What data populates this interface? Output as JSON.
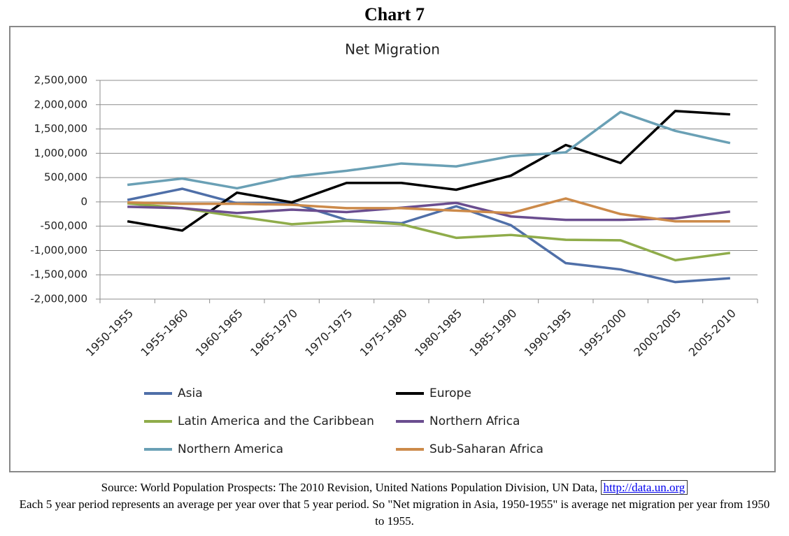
{
  "heading": "Chart 7",
  "chart_data": {
    "type": "line",
    "title": "Net Migration",
    "categories": [
      "1950-1955",
      "1955-1960",
      "1960-1965",
      "1965-1970",
      "1970-1975",
      "1975-1980",
      "1980-1985",
      "1985-1990",
      "1990-1995",
      "1995-2000",
      "2000-2005",
      "2005-2010"
    ],
    "series": [
      {
        "name": "Asia",
        "color": "#4f6fa8",
        "values": [
          40000,
          270000,
          -30000,
          -20000,
          -370000,
          -440000,
          -90000,
          -480000,
          -1260000,
          -1390000,
          -1650000,
          -1570000
        ]
      },
      {
        "name": "Europe",
        "color": "#000000",
        "values": [
          -400000,
          -590000,
          190000,
          -10000,
          390000,
          390000,
          250000,
          540000,
          1170000,
          800000,
          1870000,
          1800000
        ]
      },
      {
        "name": "Latin America and the Caribbean",
        "color": "#8fac4a",
        "values": [
          -30000,
          -130000,
          -300000,
          -460000,
          -390000,
          -460000,
          -740000,
          -680000,
          -780000,
          -790000,
          -1200000,
          -1050000
        ]
      },
      {
        "name": "Northern Africa",
        "color": "#6a4d8f",
        "values": [
          -100000,
          -130000,
          -230000,
          -160000,
          -210000,
          -120000,
          -20000,
          -300000,
          -370000,
          -370000,
          -340000,
          -200000
        ]
      },
      {
        "name": "Northern America",
        "color": "#6aa0b5",
        "values": [
          350000,
          480000,
          280000,
          520000,
          640000,
          790000,
          730000,
          940000,
          1020000,
          1850000,
          1460000,
          1210000
        ]
      },
      {
        "name": "Sub-Saharan Africa",
        "color": "#cc8a4a",
        "values": [
          -10000,
          -40000,
          -40000,
          -60000,
          -130000,
          -130000,
          -180000,
          -230000,
          70000,
          -250000,
          -400000,
          -400000
        ]
      }
    ],
    "ylim": [
      -2000000,
      2500000
    ],
    "yticks": [
      {
        "value": -2000000,
        "label": "-2,000,000"
      },
      {
        "value": -1500000,
        "label": "-1,500,000"
      },
      {
        "value": -1000000,
        "label": "-1,000,000"
      },
      {
        "value": -500000,
        "label": "-500,000"
      },
      0,
      {
        "value": 500000,
        "label": "500,000"
      },
      {
        "value": 1000000,
        "label": "1,000,000"
      },
      {
        "value": 1500000,
        "label": "1,500,000"
      },
      {
        "value": 2000000,
        "label": "2,000,000"
      },
      {
        "value": 2500000,
        "label": "2,500,000"
      }
    ],
    "grid": true,
    "legend": "bottom"
  },
  "footnote": {
    "source": "Source: World Population Prospects: The 2010 Revision, United Nations Population Division, UN Data,",
    "link": "http://data.un.org",
    "note": "Each 5 year period represents an average per year over that 5 year period. So \"Net migration in Asia, 1950-1955\" is average net migration per year from 1950 to 1955."
  }
}
